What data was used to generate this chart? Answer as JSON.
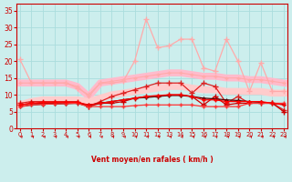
{
  "x": [
    0,
    1,
    2,
    3,
    4,
    5,
    6,
    7,
    8,
    9,
    10,
    11,
    12,
    13,
    14,
    15,
    16,
    17,
    18,
    19,
    20,
    21,
    22,
    23
  ],
  "series": [
    {
      "name": "light_pink_top",
      "y": [
        20.5,
        13.5,
        13.5,
        13.5,
        13.5,
        12.0,
        10.0,
        13.5,
        13.5,
        14.0,
        20.0,
        32.5,
        24.0,
        24.5,
        26.5,
        26.5,
        18.0,
        17.0,
        26.5,
        20.0,
        11.0,
        19.5,
        11.0,
        11.0
      ],
      "color": "#ffaaaa",
      "lw": 0.9,
      "marker": "+",
      "ms": 4,
      "zorder": 4
    },
    {
      "name": "light_pink_band_upper",
      "y": [
        13.5,
        13.5,
        13.5,
        13.5,
        13.5,
        12.5,
        9.5,
        13.5,
        14.0,
        14.5,
        15.0,
        15.5,
        16.0,
        16.5,
        16.5,
        16.0,
        15.5,
        15.5,
        15.0,
        15.0,
        14.5,
        14.5,
        14.0,
        13.5
      ],
      "color": "#ffbbcc",
      "lw": 5.5,
      "marker": null,
      "ms": 0,
      "zorder": 2
    },
    {
      "name": "light_pink_band_lower",
      "y": [
        7.0,
        8.0,
        8.5,
        8.5,
        8.5,
        8.5,
        8.0,
        9.0,
        10.0,
        10.5,
        11.0,
        11.5,
        12.0,
        12.5,
        12.5,
        12.0,
        11.5,
        11.5,
        11.0,
        11.0,
        11.0,
        11.0,
        10.5,
        10.5
      ],
      "color": "#ffcccc",
      "lw": 5.5,
      "marker": null,
      "ms": 0,
      "zorder": 2
    },
    {
      "name": "pink_mid_line",
      "y": [
        13.5,
        13.5,
        13.5,
        13.5,
        13.5,
        12.5,
        9.5,
        13.5,
        14.0,
        14.5,
        15.0,
        15.5,
        16.0,
        16.5,
        16.5,
        16.0,
        15.5,
        15.5,
        15.0,
        15.0,
        14.5,
        14.5,
        14.0,
        13.5
      ],
      "color": "#ffaaaa",
      "lw": 0.8,
      "marker": "+",
      "ms": 3,
      "zorder": 3
    },
    {
      "name": "dark_red_upper",
      "y": [
        7.5,
        8.0,
        8.0,
        8.0,
        8.0,
        8.0,
        6.5,
        8.0,
        9.5,
        10.5,
        11.5,
        12.5,
        13.5,
        13.5,
        13.5,
        10.5,
        13.5,
        12.5,
        7.5,
        9.5,
        7.5,
        7.5,
        7.5,
        5.5
      ],
      "color": "#dd2222",
      "lw": 0.9,
      "marker": "+",
      "ms": 4,
      "zorder": 5
    },
    {
      "name": "dark_red_lower",
      "y": [
        7.0,
        7.5,
        7.5,
        7.5,
        7.5,
        7.5,
        6.5,
        7.5,
        7.5,
        8.0,
        9.0,
        9.5,
        9.5,
        10.0,
        10.0,
        9.5,
        7.0,
        9.5,
        7.0,
        7.5,
        7.5,
        7.5,
        7.5,
        5.0
      ],
      "color": "#cc0000",
      "lw": 0.9,
      "marker": "+",
      "ms": 4,
      "zorder": 5
    },
    {
      "name": "dark_almost_black",
      "y": [
        6.5,
        7.0,
        7.2,
        7.3,
        7.4,
        7.5,
        7.0,
        7.5,
        8.0,
        8.5,
        9.0,
        9.2,
        9.5,
        9.8,
        9.8,
        9.5,
        9.0,
        8.8,
        8.5,
        8.3,
        8.0,
        7.8,
        7.5,
        7.2
      ],
      "color": "#550000",
      "lw": 0.9,
      "marker": "+",
      "ms": 3,
      "zorder": 5
    },
    {
      "name": "red_bottom",
      "y": [
        6.5,
        7.0,
        7.2,
        7.3,
        7.4,
        7.5,
        6.5,
        6.5,
        6.5,
        6.5,
        6.8,
        7.0,
        7.0,
        7.0,
        7.0,
        7.0,
        6.5,
        6.5,
        6.5,
        6.5,
        7.5,
        7.5,
        7.5,
        7.5
      ],
      "color": "#ff3333",
      "lw": 0.9,
      "marker": "+",
      "ms": 3,
      "zorder": 5
    },
    {
      "name": "red_mid",
      "y": [
        7.0,
        7.5,
        7.8,
        7.8,
        7.8,
        7.8,
        7.0,
        7.5,
        8.0,
        8.5,
        9.0,
        9.5,
        9.8,
        10.0,
        10.0,
        9.5,
        8.5,
        8.5,
        8.0,
        8.0,
        8.0,
        8.0,
        7.5,
        7.0
      ],
      "color": "#ff0000",
      "lw": 0.9,
      "marker": "+",
      "ms": 3,
      "zorder": 5
    }
  ],
  "xlim": [
    -0.3,
    23.3
  ],
  "ylim": [
    0,
    37
  ],
  "yticks": [
    0,
    5,
    10,
    15,
    20,
    25,
    30,
    35
  ],
  "xticks": [
    0,
    1,
    2,
    3,
    4,
    5,
    6,
    7,
    8,
    9,
    10,
    11,
    12,
    13,
    14,
    15,
    16,
    17,
    18,
    19,
    20,
    21,
    22,
    23
  ],
  "xlabel": "Vent moyen/en rafales ( km/h )",
  "bg_color": "#cceeed",
  "grid_color": "#aadddd",
  "axis_color": "#cc0000",
  "tick_color": "#cc0000",
  "label_color": "#cc0000",
  "arrow_color": "#cc0000"
}
